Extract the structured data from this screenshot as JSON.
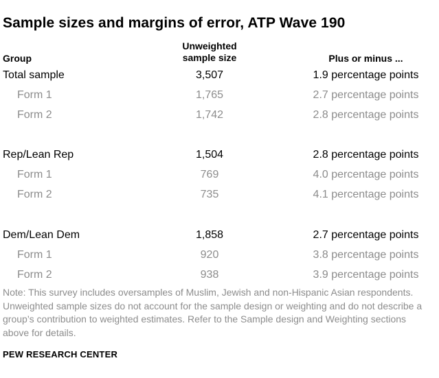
{
  "title": "Sample sizes and margins of error, ATP Wave 190",
  "headers": {
    "group": "Group",
    "size_line1": "Unweighted",
    "size_line2": "sample size",
    "moe": "Plus or minus ..."
  },
  "rows": [
    {
      "group": "Total sample",
      "size": "3,507",
      "moe": "1.9 percentage points",
      "level": "main"
    },
    {
      "group": "Form 1",
      "size": "1,765",
      "moe": "2.7 percentage points",
      "level": "sub"
    },
    {
      "group": "Form 2",
      "size": "1,742",
      "moe": "2.8 percentage points",
      "level": "sub"
    },
    {
      "group": "Rep/Lean Rep",
      "size": "1,504",
      "moe": "2.8 percentage points",
      "level": "main"
    },
    {
      "group": "Form 1",
      "size": "769",
      "moe": "4.0 percentage points",
      "level": "sub"
    },
    {
      "group": "Form 2",
      "size": "735",
      "moe": "4.1 percentage points",
      "level": "sub"
    },
    {
      "group": "Dem/Lean Dem",
      "size": "1,858",
      "moe": "2.7 percentage points",
      "level": "main"
    },
    {
      "group": "Form 1",
      "size": "920",
      "moe": "3.8 percentage points",
      "level": "sub"
    },
    {
      "group": "Form 2",
      "size": "938",
      "moe": "3.9 percentage points",
      "level": "sub"
    }
  ],
  "note": "Note: This survey includes oversamples of Muslim, Jewish and non-Hispanic Asian respondents. Unweighted sample sizes do not account for the sample design or weighting and do not describe a group’s contribution to weighted estimates. Refer to the Sample design and Weighting sections above for details.",
  "source": "PEW RESEARCH CENTER",
  "colors": {
    "primary_text": "#000000",
    "secondary_text": "#8c8c8c"
  }
}
